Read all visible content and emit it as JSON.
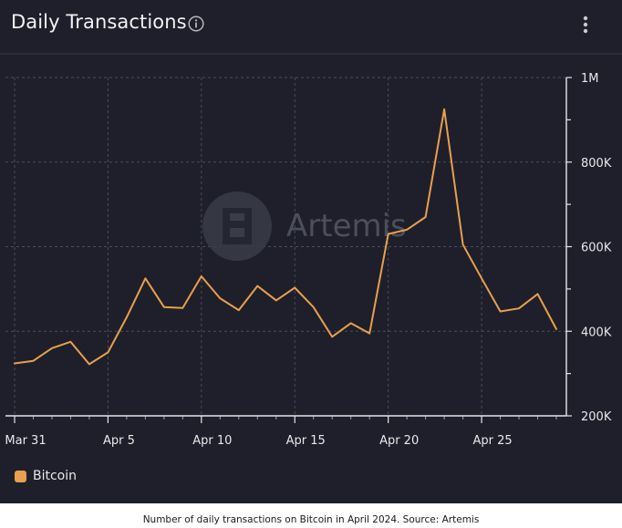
{
  "header": {
    "title": "Daily Transactions",
    "info_icon": "info-circle-icon",
    "menu_icon": "more-vertical-icon"
  },
  "watermark": {
    "text": "Artemis"
  },
  "caption": "Number of daily transactions on Bitcoin in April 2024. Source: Artemis",
  "colors": {
    "background": "#1e1f2a",
    "line": "#e8a04c",
    "grid": "#4a4c5a",
    "text": "#e8e8ec"
  },
  "chart_data": {
    "type": "line",
    "title": "Daily Transactions",
    "x_tick_labels": [
      "Mar 31",
      "Apr 5",
      "Apr 10",
      "Apr 15",
      "Apr 20",
      "Apr 25"
    ],
    "y_tick_labels": [
      "1M",
      "800K",
      "600K",
      "400K",
      "200K"
    ],
    "y_tick_values": [
      1000000,
      800000,
      600000,
      400000,
      200000
    ],
    "ylim": [
      200000,
      1000000
    ],
    "xlim": [
      "2024-03-31",
      "2024-04-29"
    ],
    "grid": true,
    "y_axis_position": "right",
    "legend_position": "bottom-left",
    "series": [
      {
        "name": "Bitcoin",
        "color": "#e8a04c",
        "x": [
          "2024-03-31",
          "2024-04-01",
          "2024-04-02",
          "2024-04-03",
          "2024-04-04",
          "2024-04-05",
          "2024-04-06",
          "2024-04-07",
          "2024-04-08",
          "2024-04-09",
          "2024-04-10",
          "2024-04-11",
          "2024-04-12",
          "2024-04-13",
          "2024-04-14",
          "2024-04-15",
          "2024-04-16",
          "2024-04-17",
          "2024-04-18",
          "2024-04-19",
          "2024-04-20",
          "2024-04-21",
          "2024-04-22",
          "2024-04-23",
          "2024-04-24",
          "2024-04-25",
          "2024-04-26",
          "2024-04-27",
          "2024-04-28",
          "2024-04-29"
        ],
        "values": [
          324000,
          330000,
          360000,
          375000,
          322000,
          350000,
          433000,
          525000,
          457000,
          455000,
          530000,
          478000,
          450000,
          507000,
          473000,
          503000,
          457000,
          387000,
          419000,
          395000,
          630000,
          640000,
          670000,
          925000,
          605000,
          525000,
          447000,
          454000,
          488000,
          405000
        ]
      }
    ]
  }
}
